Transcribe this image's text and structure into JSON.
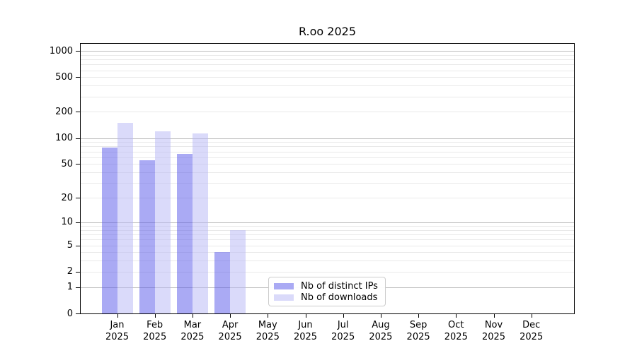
{
  "chart_data": {
    "type": "bar",
    "title": "R.oo 2025",
    "xlabel": "",
    "ylabel": "",
    "y_scale": "log1p",
    "y_ticks": [
      0,
      1,
      2,
      5,
      10,
      20,
      50,
      100,
      200,
      500,
      1000
    ],
    "y_major_gridlines": [
      1,
      10,
      100,
      1000
    ],
    "y_minor_gridline_mantissas": [
      2,
      3,
      4,
      5,
      6,
      7,
      8,
      9
    ],
    "categories": [
      "Jan",
      "Feb",
      "Mar",
      "Apr",
      "May",
      "Jun",
      "Jul",
      "Aug",
      "Sep",
      "Oct",
      "Nov",
      "Dec"
    ],
    "category_year": "2025",
    "series": [
      {
        "name": "Nb of distinct IPs",
        "color": "#aaaaf4",
        "bar_rgba": "rgba(85,85,233,0.5)",
        "values": [
          77,
          55,
          65,
          4,
          0,
          0,
          0,
          0,
          0,
          0,
          0,
          0
        ]
      },
      {
        "name": "Nb of downloads",
        "color": "#dadafa",
        "bar_rgba": "rgba(181,181,245,0.5)",
        "values": [
          150,
          119,
          114,
          8,
          0,
          0,
          0,
          0,
          0,
          0,
          0,
          0
        ]
      }
    ],
    "legend_position": "lower-center-inside",
    "grid_major_color": "#bcbcbc",
    "grid_minor_color": "#e9e9e9"
  }
}
